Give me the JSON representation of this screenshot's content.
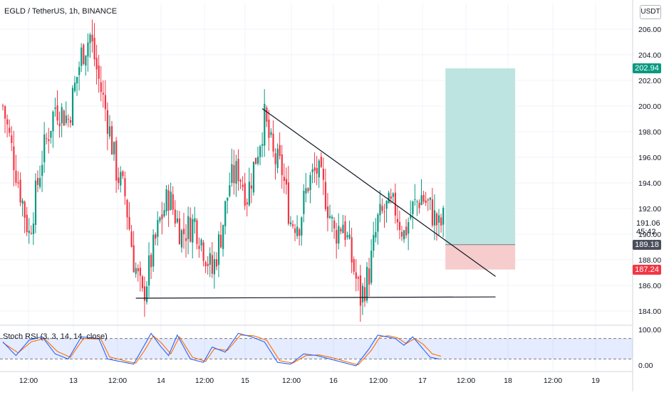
{
  "header": {
    "title": "EGLD / TetherUS, 1h, BINANCE",
    "currency": "USDT"
  },
  "price_axis": {
    "labels": [
      "206.00",
      "204.00",
      "202.00",
      "200.00",
      "198.00",
      "196.00",
      "194.00",
      "192.00",
      "190.00",
      "188.00",
      "186.00",
      "184.00"
    ]
  },
  "badges": {
    "target": {
      "value": "202.94",
      "color": "#089981"
    },
    "entry": {
      "value": "189.18",
      "color": "#4a4e5a"
    },
    "stop": {
      "value": "187.24",
      "color": "#f23645"
    },
    "current": {
      "value": "191.06",
      "countdown": "45:42"
    }
  },
  "time_axis": {
    "labels": [
      "12:00",
      "13",
      "12:00",
      "14",
      "12:00",
      "15",
      "12:00",
      "16",
      "12:00",
      "17",
      "12:00",
      "18",
      "12:00",
      "19"
    ]
  },
  "indicator": {
    "label": "Stoch RSI (3, 3, 14, 14, close)",
    "scale_labels": [
      "100.00",
      "0.00"
    ],
    "k_color": "#2962ff",
    "d_color": "#ff6d00"
  },
  "colors": {
    "up": "#089981",
    "down": "#f23645",
    "target_zone": "#b2dfdb",
    "stop_zone": "#f5c6c8"
  },
  "chart_data": {
    "type": "candlestick",
    "symbol": "EGLD / TetherUS",
    "interval": "1h",
    "exchange": "BINANCE",
    "ylim": [
      183,
      208
    ],
    "x_ticks": [
      "12:00",
      "13",
      "12:00",
      "14",
      "12:00",
      "15",
      "12:00",
      "16",
      "12:00",
      "17",
      "12:00",
      "18",
      "12:00",
      "19"
    ],
    "price_ticks": [
      206,
      204,
      202,
      200,
      198,
      196,
      194,
      192,
      190,
      188,
      186,
      184
    ],
    "waypoints": [
      [
        0,
        200
      ],
      [
        6,
        195
      ],
      [
        12,
        190
      ],
      [
        18,
        196
      ],
      [
        24,
        200
      ],
      [
        30,
        199
      ],
      [
        36,
        204
      ],
      [
        40,
        205.5
      ],
      [
        44,
        202
      ],
      [
        48,
        199
      ],
      [
        52,
        195
      ],
      [
        56,
        193
      ],
      [
        60,
        188
      ],
      [
        64,
        185
      ],
      [
        68,
        188
      ],
      [
        72,
        191
      ],
      [
        76,
        193
      ],
      [
        82,
        190
      ],
      [
        88,
        191
      ],
      [
        92,
        189
      ],
      [
        96,
        187
      ],
      [
        100,
        190
      ],
      [
        104,
        194
      ],
      [
        108,
        195
      ],
      [
        112,
        193
      ],
      [
        116,
        196
      ],
      [
        120,
        199
      ],
      [
        124,
        196
      ],
      [
        128,
        195
      ],
      [
        132,
        191
      ],
      [
        136,
        191
      ],
      [
        140,
        194
      ],
      [
        144,
        195
      ],
      [
        148,
        193
      ],
      [
        152,
        190
      ],
      [
        156,
        191
      ],
      [
        160,
        188
      ],
      [
        164,
        185
      ],
      [
        168,
        187
      ],
      [
        172,
        191
      ],
      [
        176,
        192
      ],
      [
        180,
        192
      ],
      [
        184,
        190
      ],
      [
        188,
        192
      ],
      [
        192,
        193
      ],
      [
        196,
        192
      ],
      [
        200,
        190.5
      ],
      [
        202,
        191.06
      ]
    ],
    "drawings": {
      "descending_trendline": {
        "from": [
          119,
          199.8
        ],
        "to": [
          226,
          186.7
        ]
      },
      "support_line": {
        "from": [
          61,
          185
        ],
        "to": [
          226,
          185.1
        ]
      },
      "long_position": {
        "entry": 189.18,
        "target": 202.94,
        "stop": 187.24,
        "start_bar": 203,
        "end_bar": 235
      }
    },
    "stoch_rsi": {
      "ylim": [
        0,
        100
      ],
      "band": [
        20,
        80
      ],
      "k_waypoints": [
        [
          0,
          70
        ],
        [
          6,
          30
        ],
        [
          12,
          75
        ],
        [
          18,
          85
        ],
        [
          24,
          35
        ],
        [
          30,
          20
        ],
        [
          36,
          85
        ],
        [
          44,
          80
        ],
        [
          48,
          20
        ],
        [
          56,
          10
        ],
        [
          60,
          5
        ],
        [
          64,
          50
        ],
        [
          68,
          95
        ],
        [
          72,
          60
        ],
        [
          76,
          30
        ],
        [
          80,
          90
        ],
        [
          86,
          20
        ],
        [
          92,
          10
        ],
        [
          96,
          55
        ],
        [
          102,
          40
        ],
        [
          108,
          95
        ],
        [
          114,
          85
        ],
        [
          120,
          70
        ],
        [
          126,
          10
        ],
        [
          132,
          5
        ],
        [
          138,
          35
        ],
        [
          144,
          30
        ],
        [
          150,
          20
        ],
        [
          156,
          10
        ],
        [
          162,
          0
        ],
        [
          168,
          50
        ],
        [
          172,
          90
        ],
        [
          176,
          85
        ],
        [
          180,
          80
        ],
        [
          184,
          60
        ],
        [
          188,
          85
        ],
        [
          192,
          55
        ],
        [
          196,
          25
        ],
        [
          200,
          20
        ]
      ],
      "d_waypoints": [
        [
          0,
          68
        ],
        [
          7,
          38
        ],
        [
          13,
          70
        ],
        [
          19,
          80
        ],
        [
          25,
          42
        ],
        [
          31,
          25
        ],
        [
          37,
          80
        ],
        [
          45,
          78
        ],
        [
          49,
          26
        ],
        [
          57,
          13
        ],
        [
          61,
          8
        ],
        [
          65,
          45
        ],
        [
          69,
          88
        ],
        [
          73,
          65
        ],
        [
          77,
          35
        ],
        [
          81,
          85
        ],
        [
          87,
          25
        ],
        [
          93,
          13
        ],
        [
          97,
          50
        ],
        [
          103,
          45
        ],
        [
          109,
          90
        ],
        [
          115,
          88
        ],
        [
          121,
          75
        ],
        [
          127,
          15
        ],
        [
          133,
          8
        ],
        [
          139,
          30
        ],
        [
          145,
          32
        ],
        [
          151,
          24
        ],
        [
          157,
          13
        ],
        [
          163,
          3
        ],
        [
          169,
          45
        ],
        [
          173,
          85
        ],
        [
          177,
          88
        ],
        [
          181,
          82
        ],
        [
          185,
          65
        ],
        [
          189,
          80
        ],
        [
          193,
          62
        ],
        [
          197,
          35
        ],
        [
          201,
          28
        ]
      ]
    }
  }
}
